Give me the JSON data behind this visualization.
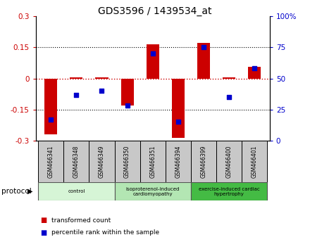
{
  "title": "GDS3596 / 1439534_at",
  "samples": [
    "GSM466341",
    "GSM466348",
    "GSM466349",
    "GSM466350",
    "GSM466351",
    "GSM466394",
    "GSM466399",
    "GSM466400",
    "GSM466401"
  ],
  "red_values": [
    -0.27,
    0.005,
    0.005,
    -0.13,
    0.165,
    -0.285,
    0.17,
    0.005,
    0.055
  ],
  "blue_values": [
    17,
    37,
    40,
    28,
    70,
    15,
    75,
    35,
    58
  ],
  "ylim_left": [
    -0.3,
    0.3
  ],
  "ylim_right": [
    0,
    100
  ],
  "yticks_left": [
    -0.3,
    -0.15,
    0,
    0.15,
    0.3
  ],
  "yticks_right": [
    0,
    25,
    50,
    75,
    100
  ],
  "ytick_labels_left": [
    "-0.3",
    "-0.15",
    "0",
    "0.15",
    "0.3"
  ],
  "ytick_labels_right": [
    "0",
    "25",
    "50",
    "75",
    "100%"
  ],
  "groups": [
    {
      "label": "control",
      "start": 0,
      "end": 3,
      "color": "#d6f5d6"
    },
    {
      "label": "isoproterenol-induced\ncardiomyopathy",
      "start": 3,
      "end": 6,
      "color": "#b3e6b3"
    },
    {
      "label": "exercise-induced cardiac\nhypertrophy",
      "start": 6,
      "end": 9,
      "color": "#44bb44"
    }
  ],
  "protocol_label": "protocol",
  "legend1": "transformed count",
  "legend2": "percentile rank within the sample",
  "red_color": "#cc0000",
  "blue_color": "#0000cc",
  "bar_width": 0.5,
  "gray_cell_color": "#c8c8c8",
  "dotline_color": "#cc0000",
  "grid_color": "#555555"
}
